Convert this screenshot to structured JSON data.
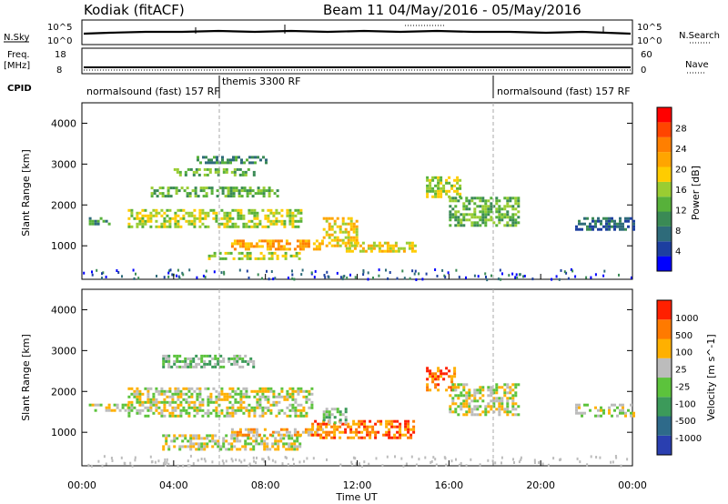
{
  "header": {
    "station": "Kodiak (fitACF)",
    "beam_info": "Beam 11  04/May/2016 - 05/May/2016"
  },
  "top_panels": {
    "nsky_label": "N.Sky",
    "nsearch_label": "N.Search",
    "nsky_ticks": [
      "10^5",
      "10^0"
    ],
    "freq_label": "Freq.",
    "freq_unit": "[MHz]",
    "freq_ticks": [
      "18",
      "8"
    ],
    "nave_label": "Nave",
    "nave_ticks": [
      "60",
      "0"
    ],
    "cpid_label": "CPID",
    "cpid_segments": [
      {
        "label": "normalsound (fast) 157 RF",
        "start_hour": 0
      },
      {
        "label": "themis 3300 RF",
        "start_hour": 6
      },
      {
        "label": "normalsound (fast) 157 RF",
        "start_hour": 18
      }
    ]
  },
  "chart_data": [
    {
      "type": "heatmap",
      "name": "power",
      "ylabel": "Slant Range [km]",
      "xlabel": "Time UT",
      "y_ticks": [
        1000,
        2000,
        3000,
        4000
      ],
      "ylim": [
        180,
        4500
      ],
      "xlim": [
        0,
        24
      ],
      "colorbar": {
        "label": "Power [dB]",
        "ticks": [
          "28",
          "24",
          "20",
          "16",
          "12",
          "8",
          "4"
        ],
        "colors": [
          "#0000ff",
          "#1d3fa0",
          "#2e6b7a",
          "#3a8a55",
          "#57b13a",
          "#9acd32",
          "#ffcc00",
          "#ffa500",
          "#ff7f00",
          "#ff4500",
          "#ff0000"
        ]
      },
      "regions": [
        {
          "t_start": 0.3,
          "t_end": 1.2,
          "r_start": 1550,
          "r_end": 1700,
          "level": 3
        },
        {
          "t_start": 2.0,
          "t_end": 9.5,
          "r_start": 1450,
          "r_end": 1900,
          "level": 5
        },
        {
          "t_start": 3.0,
          "t_end": 8.5,
          "r_start": 2200,
          "r_end": 2450,
          "level": 4
        },
        {
          "t_start": 4.0,
          "t_end": 7.5,
          "r_start": 2700,
          "r_end": 2900,
          "level": 4
        },
        {
          "t_start": 5.0,
          "t_end": 8.0,
          "r_start": 3000,
          "r_end": 3200,
          "level": 3
        },
        {
          "t_start": 6.5,
          "t_end": 10.5,
          "r_start": 900,
          "r_end": 1150,
          "level": 7
        },
        {
          "t_start": 5.5,
          "t_end": 9.5,
          "r_start": 700,
          "r_end": 850,
          "level": 5
        },
        {
          "t_start": 10.5,
          "t_end": 12.0,
          "r_start": 1000,
          "r_end": 1700,
          "level": 6
        },
        {
          "t_start": 11.5,
          "t_end": 14.5,
          "r_start": 850,
          "r_end": 1100,
          "level": 6
        },
        {
          "t_start": 15.0,
          "t_end": 16.5,
          "r_start": 2200,
          "r_end": 2700,
          "level": 5
        },
        {
          "t_start": 16.0,
          "t_end": 19.0,
          "r_start": 1500,
          "r_end": 2200,
          "level": 4
        },
        {
          "t_start": 21.5,
          "t_end": 24.0,
          "r_start": 1400,
          "r_end": 1700,
          "level": 2
        }
      ]
    },
    {
      "type": "heatmap",
      "name": "velocity",
      "ylabel": "Slant Range [km]",
      "xlabel": "Time UT",
      "y_ticks": [
        1000,
        2000,
        3000,
        4000
      ],
      "ylim": [
        180,
        4500
      ],
      "xlim": [
        0,
        24
      ],
      "colorbar": {
        "label": "Velocity [m s^-1]",
        "ticks": [
          "1000",
          "500",
          "100",
          "25",
          "-25",
          "-100",
          "-500",
          "-1000"
        ],
        "colors": [
          "#2a3fb0",
          "#2e6a8a",
          "#3c9a5a",
          "#5cc33c",
          "#bcbcbc",
          "#ffb000",
          "#ff7a00",
          "#ff2000"
        ]
      },
      "regions": [
        {
          "t_start": 0.3,
          "t_end": 2.0,
          "r_start": 1500,
          "r_end": 1700,
          "level": 4
        },
        {
          "t_start": 2.0,
          "t_end": 10.0,
          "r_start": 1400,
          "r_end": 2100,
          "level": 4
        },
        {
          "t_start": 3.5,
          "t_end": 7.5,
          "r_start": 2600,
          "r_end": 2900,
          "level": 3
        },
        {
          "t_start": 3.5,
          "t_end": 9.5,
          "r_start": 600,
          "r_end": 950,
          "level": 4
        },
        {
          "t_start": 6.5,
          "t_end": 10.5,
          "r_start": 900,
          "r_end": 1100,
          "level": 5
        },
        {
          "t_start": 10.0,
          "t_end": 14.5,
          "r_start": 850,
          "r_end": 1300,
          "level": 6
        },
        {
          "t_start": 10.5,
          "t_end": 11.5,
          "r_start": 1200,
          "r_end": 1600,
          "level": 3
        },
        {
          "t_start": 15.0,
          "t_end": 16.2,
          "r_start": 2000,
          "r_end": 2600,
          "level": 6
        },
        {
          "t_start": 16.0,
          "t_end": 19.0,
          "r_start": 1400,
          "r_end": 2200,
          "level": 4
        },
        {
          "t_start": 21.5,
          "t_end": 24.0,
          "r_start": 1400,
          "r_end": 1700,
          "level": 4
        }
      ]
    }
  ],
  "x_ticks": [
    "00:00",
    "04:00",
    "08:00",
    "12:00",
    "16:00",
    "20:00",
    "00:00"
  ],
  "x_label": "Time UT"
}
